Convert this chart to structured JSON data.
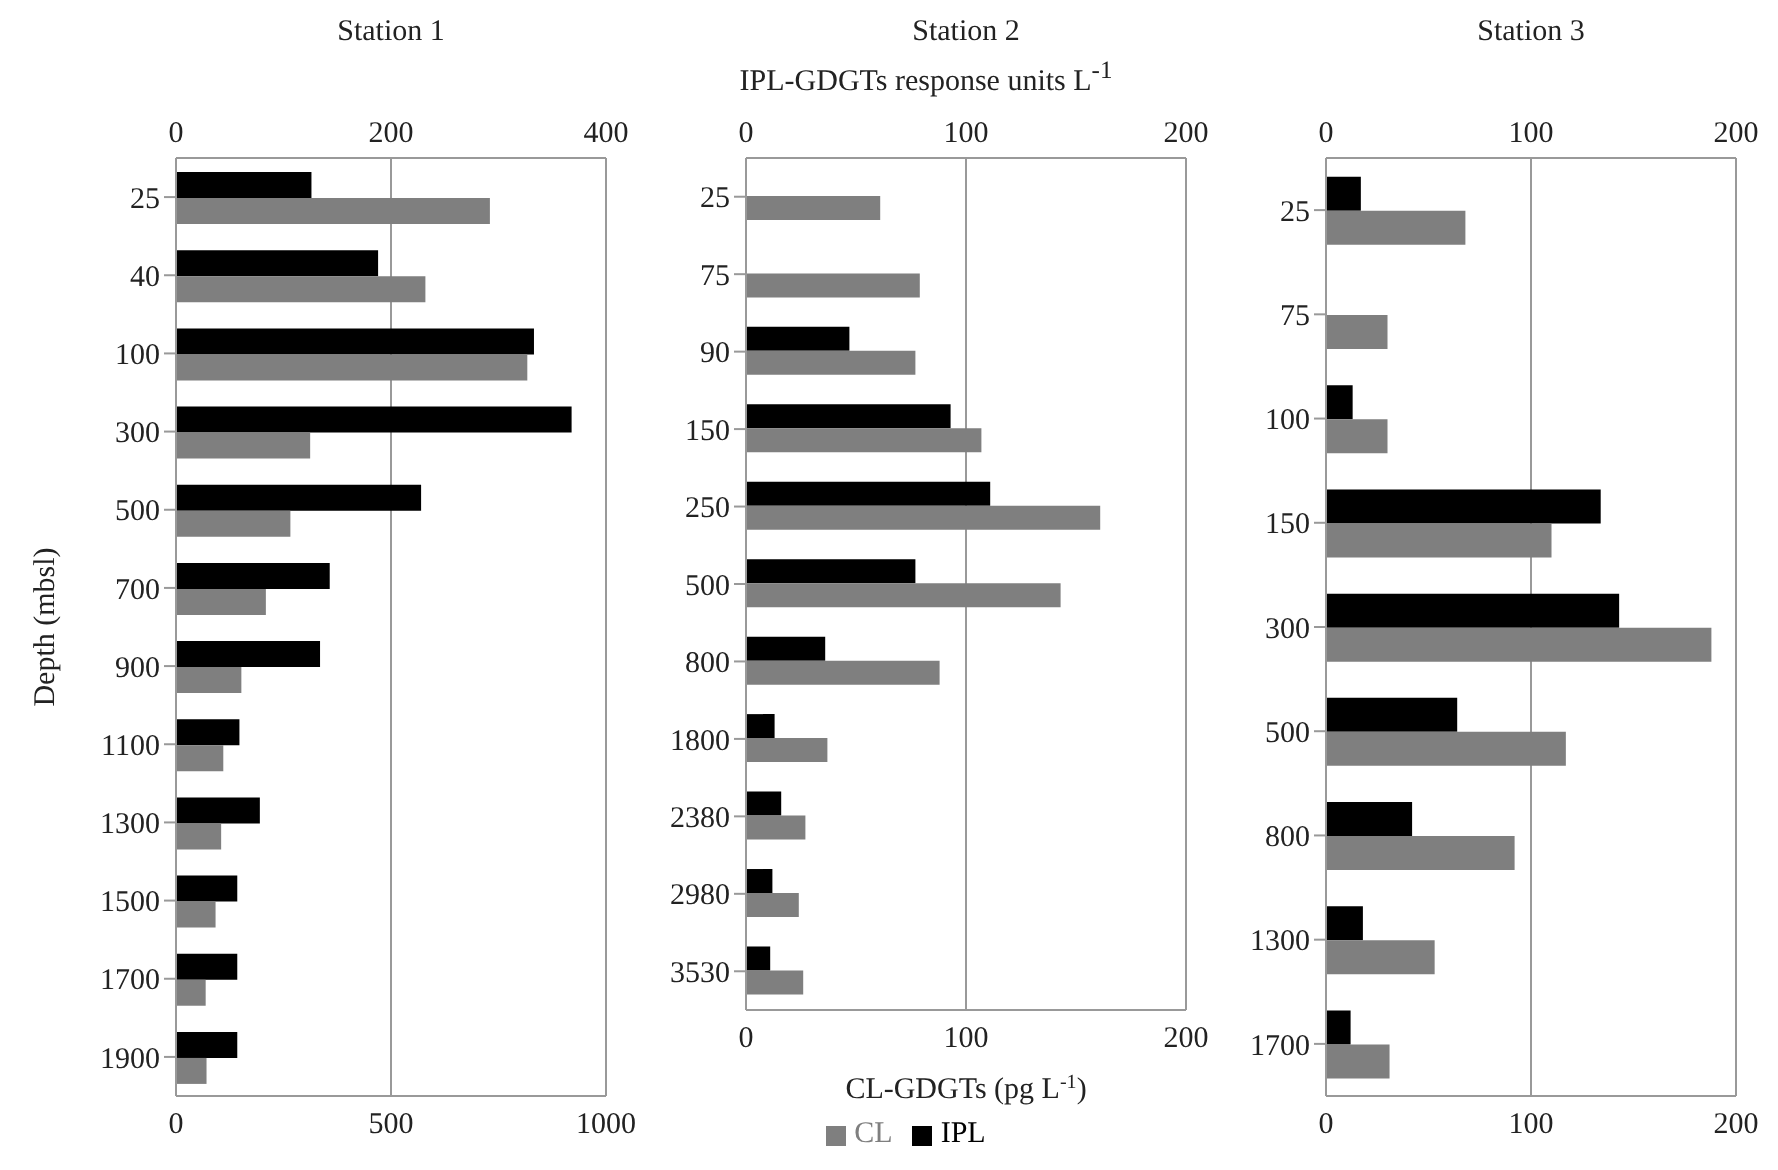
{
  "chart_data": [
    {
      "type": "bar",
      "orientation": "horizontal",
      "title": "Station 1",
      "ylabel": "Depth (mbsl)",
      "categories": [
        "25",
        "40",
        "100",
        "300",
        "500",
        "700",
        "900",
        "1100",
        "1300",
        "1500",
        "1700",
        "1900"
      ],
      "series": [
        {
          "color": "#000000",
          "axis": "x2",
          "values": [
            126,
            188,
            333,
            368,
            228,
            143,
            134,
            59,
            78,
            57,
            57,
            57
          ]
        },
        {
          "color": "#7f7f7f",
          "values": [
            730,
            580,
            817,
            312,
            266,
            209,
            152,
            110,
            105,
            92,
            69,
            71
          ]
        }
      ],
      "xlim": [
        0,
        1000
      ],
      "xticks": [
        0,
        500,
        1000
      ],
      "x2lim": [
        0,
        400
      ],
      "x2ticks": [
        0,
        200,
        400
      ],
      "grid": "x",
      "legend": false
    },
    {
      "type": "bar",
      "orientation": "horizontal",
      "title": "Station 2",
      "x2label": "IPL-GDGTs response units L$^{-1}$",
      "xlabel": "CL-GDGTs (pg L$^{-1}$)",
      "categories": [
        "25",
        "75",
        "90",
        "150",
        "250",
        "500",
        "800",
        "1800",
        "2380",
        "2980",
        "3530"
      ],
      "series": [
        {
          "name": "IPL",
          "color": "#000000",
          "axis": "x2",
          "values": [
            null,
            null,
            47,
            93,
            111,
            77,
            36,
            13,
            16,
            12,
            11
          ]
        },
        {
          "name": "CL",
          "color": "#7f7f7f",
          "values": [
            61,
            79,
            77,
            107,
            161,
            143,
            88,
            37,
            27,
            24,
            26
          ]
        }
      ],
      "xlim": [
        0,
        200
      ],
      "xticks": [
        0,
        100,
        200
      ],
      "x2lim": [
        0,
        200
      ],
      "x2ticks": [
        0,
        100,
        200
      ],
      "grid": "x",
      "legend": "bottom"
    },
    {
      "type": "bar",
      "orientation": "horizontal",
      "title": "Station 3",
      "categories": [
        "25",
        "75",
        "100",
        "150",
        "300",
        "500",
        "800",
        "1300",
        "1700"
      ],
      "series": [
        {
          "color": "#000000",
          "axis": "x2",
          "values": [
            17,
            null,
            13,
            134,
            143,
            64,
            42,
            18,
            12
          ]
        },
        {
          "color": "#7f7f7f",
          "values": [
            68,
            30,
            30,
            110,
            188,
            117,
            92,
            53,
            31
          ]
        }
      ],
      "xlim": [
        0,
        200
      ],
      "xticks": [
        0,
        100,
        200
      ],
      "x2lim": [
        0,
        200
      ],
      "x2ticks": [
        0,
        100,
        200
      ],
      "grid": "x",
      "legend": false
    }
  ]
}
